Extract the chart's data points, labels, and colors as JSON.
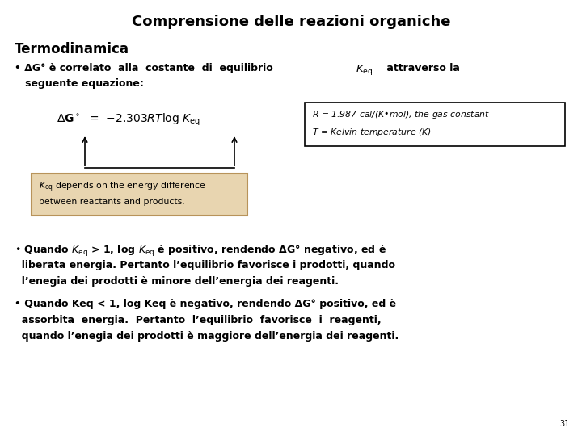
{
  "title": "Comprensione delle reazioni organiche",
  "bg_color": "#ffffff",
  "title_fontsize": 13,
  "section_fontsize": 12,
  "body_fontsize": 9.0,
  "eq_fontsize": 10,
  "small_fontsize": 7.8,
  "equation_box_color": "#e8d5b0",
  "equation_box_edge": "#b8935a",
  "bullet1_line1": "• ΔG° è correlato  alla  costante  di  equilibrio  ",
  "bullet1_Keq": "$\\mathit{K}_{\\mathrm{eq}}$",
  "bullet1_rest": " attraverso la",
  "bullet1_line2": "   seguente equazione:",
  "rbox_line1": "$\\mathit{R}$ = 1.987 cal/(K•mol), the gas constant",
  "rbox_line2": "$\\mathit{T}$ = Kelvin temperature (K)",
  "keq_box_line1": "$\\mathit{K}_{\\mathrm{eq}}$ depends on the energy difference",
  "keq_box_line2": "between reactants and products.",
  "b2_line1": "• Quando $\\mathit{K}_{\\mathrm{eq}}$ > 1, log $\\mathit{K}_{\\mathrm{eq}}$ è positivo, rendendo ΔG° negativo, ed è",
  "b2_line2": "  liberata energia. Pertanto l’equilibrio favorisce i prodotti, quando",
  "b2_line3": "  l’enegia dei prodotti è minore dell’energia dei reagenti.",
  "b3_line1": "• Quando Keq < 1, log Keq è negativo, rendendo ΔG° positivo, ed è",
  "b3_line2": "  assorbita  energia.  Pertanto  l’equilibrio  favorisce  i  reagenti,",
  "b3_line3": "  quando l’enegia dei prodotti è maggiore dell’energia dei reagenti.",
  "page_num": "31"
}
